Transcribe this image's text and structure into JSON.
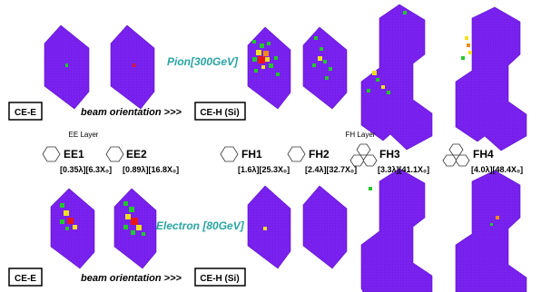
{
  "beams": {
    "top": {
      "label": "Pion[300GeV]"
    },
    "bottom": {
      "label": "Electron [80GeV]"
    }
  },
  "boxes": {
    "ce_e": "CE-E",
    "ce_h": "CE-H (Si)"
  },
  "beam_orientation": "beam orientation >>>",
  "layer_groups": {
    "ee": "EE Layer",
    "fh": "FH Layer"
  },
  "layers": [
    {
      "name": "EE1",
      "depth": "[0.35λ][6.3X₀]"
    },
    {
      "name": "EE2",
      "depth": "[0.89λ][16.8X₀]"
    },
    {
      "name": "FH1",
      "depth": "[1.6λ][25.3X₀]"
    },
    {
      "name": "FH2",
      "depth": "[2.4λ][32.7X₀]"
    },
    {
      "name": "FH3",
      "depth": "[3.3λ][41.1X₀]"
    },
    {
      "name": "FH4",
      "depth": "[4.0λ][48.4X₀]"
    }
  ],
  "colors": {
    "detector": "#7b22f2",
    "hit_green": "#22c82a",
    "hit_yellow": "#f0e020",
    "hit_orange": "#f08a1c",
    "hit_red": "#e8141c",
    "beam_text": "#2aa3a3"
  }
}
